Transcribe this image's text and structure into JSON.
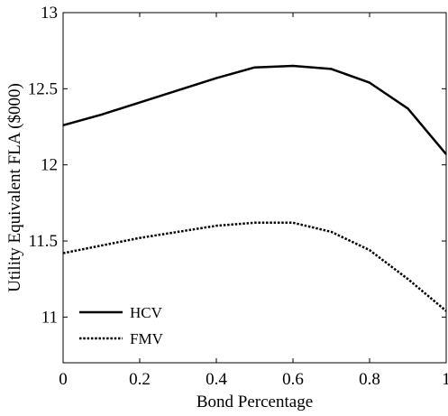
{
  "chart_data": {
    "type": "line",
    "title": "",
    "xlabel": "Bond Percentage",
    "ylabel": "Utility Equivalent FLA ($000)",
    "xlim": [
      0,
      1
    ],
    "ylim": [
      10.7,
      13
    ],
    "grid": false,
    "legend_position": "bottom-left",
    "x_ticks": [
      0,
      0.2,
      0.4,
      0.6,
      0.8,
      1
    ],
    "x_tick_labels": [
      "0",
      "0.2",
      "0.4",
      "0.6",
      "0.8",
      "1"
    ],
    "y_ticks": [
      11,
      11.5,
      12,
      12.5,
      13
    ],
    "y_tick_labels": [
      "11",
      "11.5",
      "12",
      "12.5",
      "13"
    ],
    "x": [
      0,
      0.1,
      0.2,
      0.3,
      0.4,
      0.5,
      0.6,
      0.7,
      0.8,
      0.9,
      1.0
    ],
    "series": [
      {
        "name": "HCV",
        "line_style": "solid",
        "color": "#000000",
        "values": [
          12.26,
          12.33,
          12.41,
          12.49,
          12.57,
          12.64,
          12.65,
          12.63,
          12.54,
          12.37,
          12.07
        ]
      },
      {
        "name": "FMV",
        "line_style": "dotted",
        "color": "#000000",
        "values": [
          11.42,
          11.47,
          11.52,
          11.56,
          11.6,
          11.62,
          11.62,
          11.56,
          11.44,
          11.25,
          11.04
        ]
      }
    ]
  }
}
